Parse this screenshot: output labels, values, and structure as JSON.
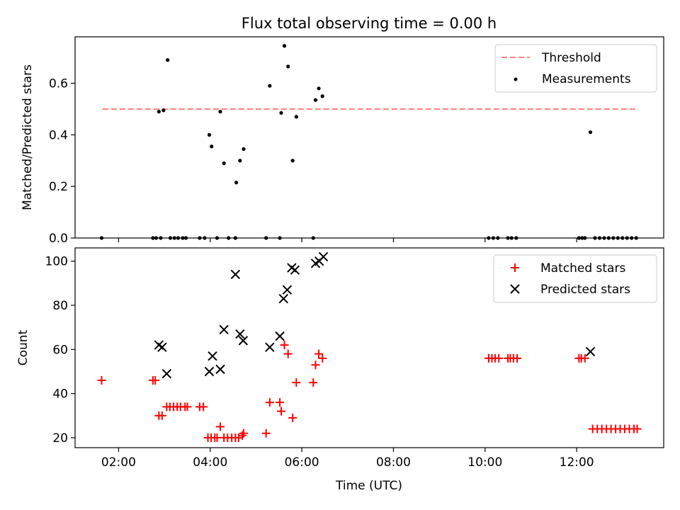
{
  "chart_data": [
    {
      "type": "scatter",
      "title": "Flux total observing time = 0.00 h",
      "xlabel": "",
      "ylabel": "Matched/Predicted stars",
      "xlim": [
        1.05,
        13.9
      ],
      "ylim": [
        0,
        0.78
      ],
      "xticks": [
        2,
        4,
        6,
        8,
        10,
        12
      ],
      "yticks": [
        0.0,
        0.2,
        0.4,
        0.6
      ],
      "ytick_labels": [
        "0.0",
        "0.2",
        "0.4",
        "0.6"
      ],
      "legend_position": "top-right",
      "threshold": {
        "name": "Threshold",
        "value": 0.5,
        "x": [
          1.65,
          13.3
        ],
        "color": "#ff7f7f"
      },
      "measurements": {
        "name": "Measurements",
        "color": "#000000",
        "x": [
          1.63,
          2.75,
          2.82,
          2.88,
          2.92,
          2.98,
          3.07,
          3.13,
          3.22,
          3.3,
          3.4,
          3.47,
          3.77,
          3.88,
          3.98,
          4.03,
          4.15,
          4.22,
          4.3,
          4.4,
          4.55,
          4.57,
          4.65,
          4.73,
          5.22,
          5.3,
          5.52,
          5.55,
          5.62,
          5.7,
          5.8,
          5.88,
          6.25,
          6.3,
          6.37,
          6.45,
          10.08,
          10.18,
          10.28,
          10.5,
          10.58,
          10.68,
          12.05,
          12.12,
          12.18,
          12.3,
          12.4,
          12.5,
          12.6,
          12.7,
          12.8,
          12.9,
          13.0,
          13.1,
          13.2,
          13.3
        ],
        "y": [
          0,
          0,
          0,
          0.49,
          0,
          0.495,
          0.69,
          0,
          0,
          0,
          0,
          0,
          0,
          0,
          0.4,
          0.355,
          0,
          0.49,
          0.29,
          0,
          0,
          0.215,
          0.3,
          0.345,
          0,
          0.59,
          0,
          0.485,
          0.745,
          0.665,
          0.3,
          0.47,
          0,
          0.535,
          0.58,
          0.55,
          0,
          0,
          0,
          0,
          0,
          0,
          0,
          0,
          0,
          0.41,
          0,
          0,
          0,
          0,
          0,
          0,
          0,
          0,
          0,
          0
        ]
      }
    },
    {
      "type": "scatter",
      "title": "",
      "xlabel": "Time (UTC)",
      "ylabel": "Count",
      "xlim": [
        1.05,
        13.9
      ],
      "ylim": [
        15.5,
        106
      ],
      "xticks": [
        2,
        4,
        6,
        8,
        10,
        12
      ],
      "xtick_labels": [
        "02:00",
        "04:00",
        "06:00",
        "08:00",
        "10:00",
        "12:00"
      ],
      "yticks": [
        20,
        40,
        60,
        80,
        100
      ],
      "ytick_labels": [
        "20",
        "40",
        "60",
        "80",
        "100"
      ],
      "legend_position": "top-right",
      "series": [
        {
          "name": "Matched stars",
          "marker": "+",
          "color": "#ff0000",
          "x": [
            1.63,
            2.75,
            2.8,
            2.88,
            2.95,
            3.05,
            3.12,
            3.2,
            3.28,
            3.35,
            3.45,
            3.5,
            3.77,
            3.85,
            3.95,
            4.02,
            4.1,
            4.15,
            4.22,
            4.3,
            4.38,
            4.47,
            4.55,
            4.62,
            4.7,
            4.73,
            5.22,
            5.3,
            5.52,
            5.55,
            5.62,
            5.7,
            5.8,
            5.88,
            6.25,
            6.3,
            6.37,
            6.45,
            10.08,
            10.15,
            10.22,
            10.3,
            10.5,
            10.55,
            10.62,
            10.7,
            12.05,
            12.1,
            12.18,
            12.35,
            12.45,
            12.55,
            12.65,
            12.75,
            12.85,
            12.95,
            13.05,
            13.15,
            13.25,
            13.32
          ],
          "y": [
            46,
            46,
            46,
            30,
            30,
            34,
            34,
            34,
            34,
            34,
            34,
            34,
            34,
            34,
            20,
            20,
            20,
            20,
            25,
            20,
            20,
            20,
            20,
            20,
            21,
            22,
            22,
            36,
            36,
            32,
            62,
            58,
            29,
            45,
            45,
            53,
            58,
            56,
            56,
            56,
            56,
            56,
            56,
            56,
            56,
            56,
            56,
            56,
            56,
            24,
            24,
            24,
            24,
            24,
            24,
            24,
            24,
            24,
            24,
            24
          ]
        },
        {
          "name": "Predicted stars",
          "marker": "x",
          "color": "#000000",
          "x": [
            2.88,
            2.95,
            3.05,
            3.98,
            4.05,
            4.22,
            4.3,
            4.55,
            4.65,
            4.72,
            5.3,
            5.52,
            5.6,
            5.68,
            5.78,
            5.85,
            6.3,
            6.38,
            6.47,
            12.3
          ],
          "y": [
            62,
            61,
            49,
            50,
            57,
            51,
            69,
            94,
            67,
            64,
            61,
            66,
            83,
            87,
            97,
            96,
            99,
            100,
            102,
            59
          ]
        }
      ]
    }
  ]
}
